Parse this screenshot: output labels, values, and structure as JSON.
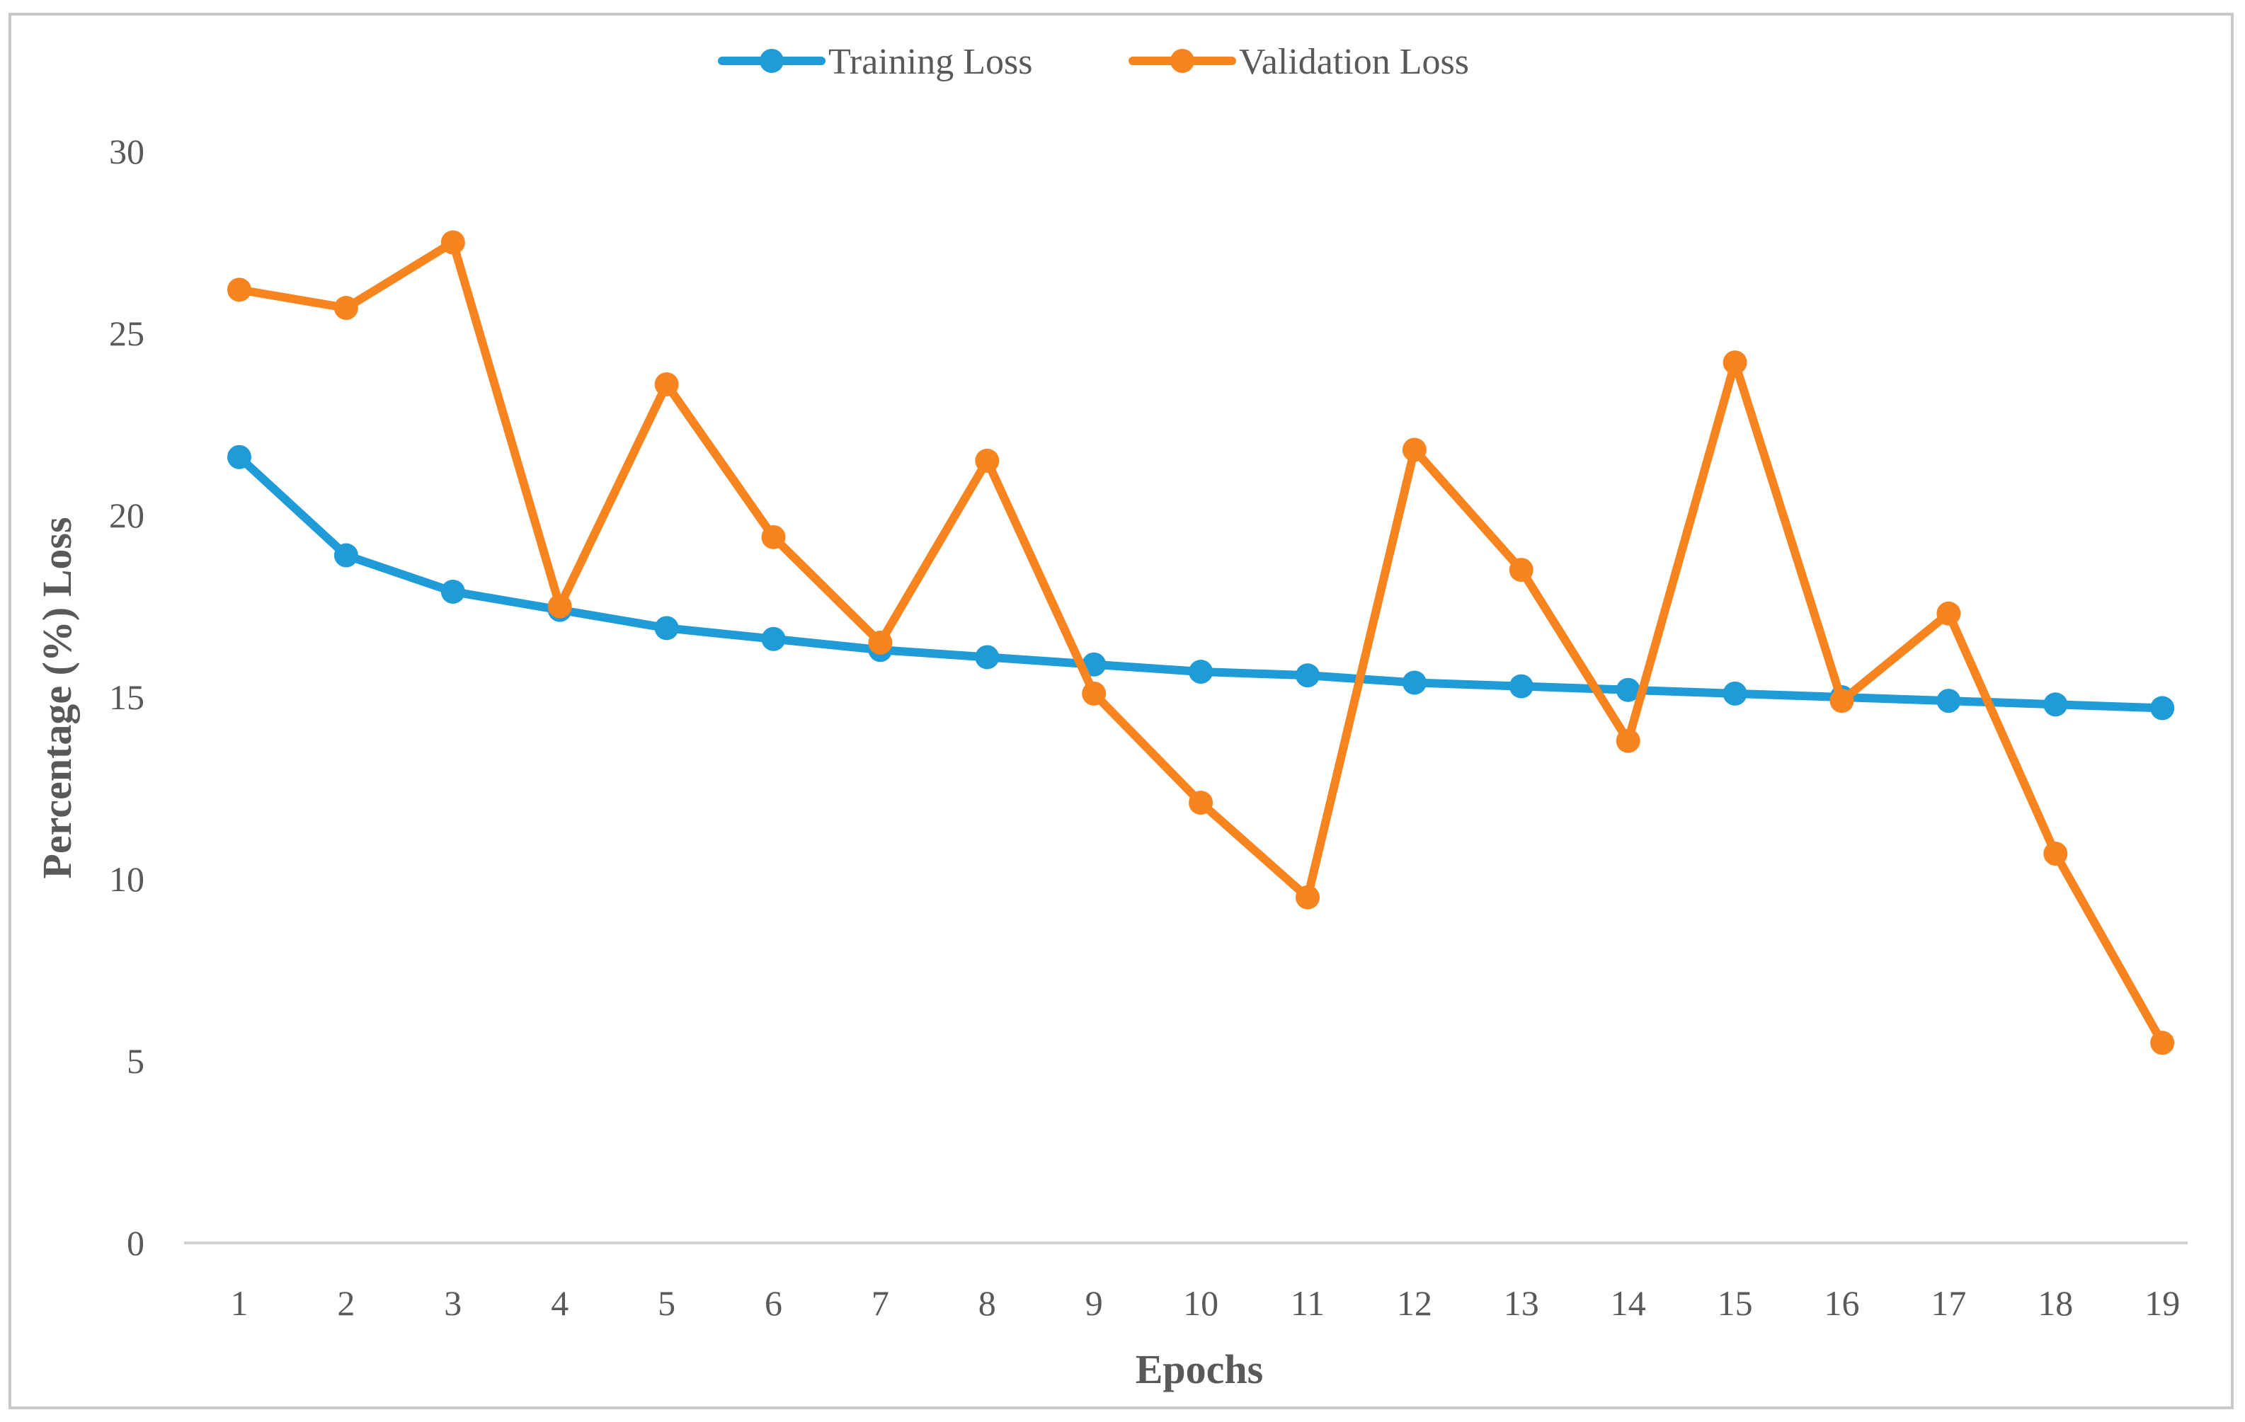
{
  "chart_data": {
    "type": "line",
    "title": "",
    "xlabel": "Epochs",
    "ylabel": "Percentage (%)  Loss",
    "ylim": [
      0,
      30
    ],
    "yticks": [
      0,
      5,
      10,
      15,
      20,
      25,
      30
    ],
    "grid": false,
    "legend_position": "top-center",
    "categories": [
      "1",
      "2",
      "3",
      "4",
      "5",
      "6",
      "7",
      "8",
      "9",
      "10",
      "11",
      "12",
      "13",
      "14",
      "15",
      "16",
      "17",
      "18",
      "19"
    ],
    "series": [
      {
        "name": "Training Loss",
        "color": "#1f9bd7",
        "values": [
          21.6,
          18.9,
          17.9,
          17.4,
          16.9,
          16.6,
          16.3,
          16.1,
          15.9,
          15.7,
          15.6,
          15.4,
          15.3,
          15.2,
          15.1,
          15.0,
          14.9,
          14.8,
          14.7
        ]
      },
      {
        "name": "Validation Loss",
        "color": "#f7841f",
        "values": [
          26.2,
          25.7,
          27.5,
          17.5,
          23.6,
          19.4,
          16.5,
          21.5,
          15.1,
          12.1,
          9.5,
          21.8,
          18.5,
          13.8,
          24.2,
          14.9,
          17.3,
          10.7,
          5.5
        ]
      }
    ]
  }
}
